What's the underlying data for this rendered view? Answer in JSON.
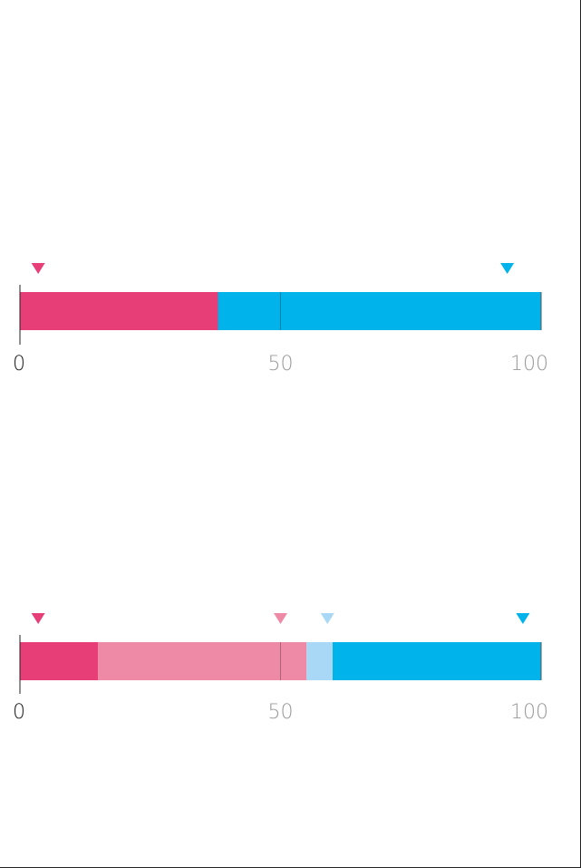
{
  "chart_data": [
    {
      "type": "bar",
      "orientation": "horizontal-stacked",
      "title": "",
      "xlabel": "",
      "ylabel": "",
      "xlim": [
        0,
        100
      ],
      "grid": false,
      "segments": [
        {
          "value": 38,
          "color": "#e83e78"
        },
        {
          "value": 62,
          "color": "#00b4eb"
        }
      ],
      "markers": [
        {
          "value": 3.5,
          "color": "#e83e78"
        },
        {
          "value": 93.5,
          "color": "#00b4eb"
        }
      ],
      "ticks": [
        {
          "value": 0,
          "label": "0",
          "color": "#222222"
        },
        {
          "value": 50,
          "label": "50",
          "color": "#999999"
        },
        {
          "value": 100,
          "label": "100",
          "color": "#999999"
        }
      ]
    },
    {
      "type": "bar",
      "orientation": "horizontal-stacked",
      "title": "",
      "xlabel": "",
      "ylabel": "",
      "xlim": [
        0,
        100
      ],
      "grid": false,
      "segments": [
        {
          "value": 15,
          "color": "#e83e78"
        },
        {
          "value": 40,
          "color": "#ef8aa6"
        },
        {
          "value": 5,
          "color": "#a8d8f5"
        },
        {
          "value": 40,
          "color": "#00b4eb"
        }
      ],
      "markers": [
        {
          "value": 3.5,
          "color": "#e83e78"
        },
        {
          "value": 50,
          "color": "#ef8aa6"
        },
        {
          "value": 59,
          "color": "#a8d8f5"
        },
        {
          "value": 96.5,
          "color": "#00b4eb"
        }
      ],
      "ticks": [
        {
          "value": 0,
          "label": "0",
          "color": "#222222"
        },
        {
          "value": 50,
          "label": "50",
          "color": "#999999"
        },
        {
          "value": 100,
          "label": "100",
          "color": "#999999"
        }
      ]
    }
  ]
}
